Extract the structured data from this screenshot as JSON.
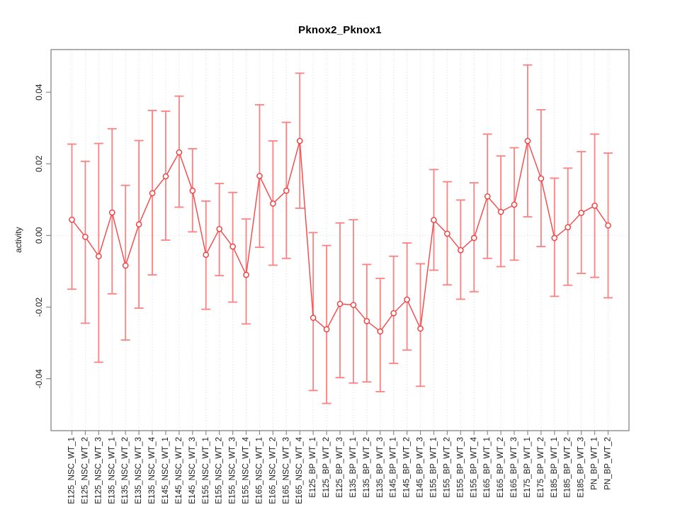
{
  "chart_data": {
    "type": "line",
    "title": "Pknox2_Pknox1",
    "xlabel": "",
    "ylabel": "activity",
    "legend": "none",
    "grid": {
      "vertical_gridlines": "dotted per category",
      "horizontal_gridline_at": 0
    },
    "ylim": [
      -0.0545,
      0.0519
    ],
    "yticks": [
      0.04,
      0.02,
      0,
      -0.02,
      -0.04
    ],
    "ytick_labels": [
      "0.04",
      "0.02",
      "0.00",
      "-0.02",
      "-0.04"
    ],
    "categories": [
      "E125_NSC_WT_1",
      "E125_NSC_WT_2",
      "E125_NSC_WT_3",
      "E135_NSC_WT_1",
      "E135_NSC_WT_2",
      "E135_NSC_WT_3",
      "E135_NSC_WT_4",
      "E145_NSC_WT_1",
      "E145_NSC_WT_2",
      "E145_NSC_WT_3",
      "E155_NSC_WT_1",
      "E155_NSC_WT_2",
      "E155_NSC_WT_3",
      "E155_NSC_WT_4",
      "E165_NSC_WT_1",
      "E165_NSC_WT_2",
      "E165_NSC_WT_3",
      "E165_NSC_WT_4",
      "E125_BP_WT_1",
      "E125_BP_WT_2",
      "E125_BP_WT_3",
      "E135_BP_WT_1",
      "E135_BP_WT_2",
      "E135_BP_WT_3",
      "E145_BP_WT_1",
      "E145_BP_WT_2",
      "E145_BP_WT_3",
      "E155_BP_WT_1",
      "E155_BP_WT_2",
      "E155_BP_WT_3",
      "E155_BP_WT_4",
      "E165_BP_WT_1",
      "E165_BP_WT_2",
      "E165_BP_WT_3",
      "E175_BP_WT_1",
      "E175_BP_WT_2",
      "E185_BP_WT_1",
      "E185_BP_WT_2",
      "E185_BP_WT_3",
      "PN_BP_WT_1",
      "PN_BP_WT_2"
    ],
    "series": [
      {
        "name": "activity",
        "values": [
          0.0044,
          -0.0004,
          -0.0058,
          0.0064,
          -0.0084,
          0.0031,
          0.0118,
          0.0165,
          0.0232,
          0.0125,
          -0.0054,
          0.0018,
          -0.0031,
          -0.011,
          0.0166,
          0.0089,
          0.0125,
          0.0264,
          -0.023,
          -0.0262,
          -0.0191,
          -0.0194,
          -0.0239,
          -0.0268,
          -0.0217,
          -0.0179,
          -0.026,
          0.0043,
          0.0005,
          -0.0041,
          -0.0007,
          0.0109,
          0.0066,
          0.0086,
          0.0264,
          0.0159,
          -0.0007,
          0.0023,
          0.0063,
          0.0083,
          0.0028
        ],
        "upper": [
          0.0255,
          0.0207,
          0.0257,
          0.0298,
          0.014,
          0.0265,
          0.0349,
          0.0347,
          0.0389,
          0.0242,
          0.0096,
          0.0145,
          0.012,
          0.0046,
          0.0365,
          0.0264,
          0.0316,
          0.0453,
          0.0008,
          -0.0028,
          0.0035,
          0.0044,
          -0.0081,
          -0.012,
          -0.0058,
          -0.0021,
          -0.0079,
          0.0184,
          0.015,
          0.0099,
          0.0147,
          0.0283,
          0.0222,
          0.0245,
          0.0476,
          0.0351,
          0.016,
          0.0188,
          0.0234,
          0.0283,
          0.023
        ],
        "lower": [
          -0.015,
          -0.0245,
          -0.0354,
          -0.0163,
          -0.0292,
          -0.0203,
          -0.011,
          -0.0013,
          0.0079,
          0.001,
          -0.0206,
          -0.0112,
          -0.0186,
          -0.0247,
          -0.0033,
          -0.0083,
          -0.0064,
          0.0076,
          -0.0433,
          -0.0469,
          -0.0397,
          -0.0412,
          -0.0409,
          -0.0436,
          -0.0357,
          -0.032,
          -0.0421,
          -0.0097,
          -0.0138,
          -0.0178,
          -0.0157,
          -0.0064,
          -0.0087,
          -0.0069,
          0.0052,
          -0.0031,
          -0.017,
          -0.0139,
          -0.0106,
          -0.0117,
          -0.0174
        ]
      }
    ],
    "colors": {
      "line": "#f64545",
      "point_stroke": "#f43b3b",
      "point_fill": "#ffffff",
      "error_bar": "#ff8080",
      "grid": "#dcdcdc",
      "box": "#7a7a7a",
      "tick": "#8a8a8a",
      "tick_label": "#1a1a1a",
      "title": "#000000"
    }
  }
}
